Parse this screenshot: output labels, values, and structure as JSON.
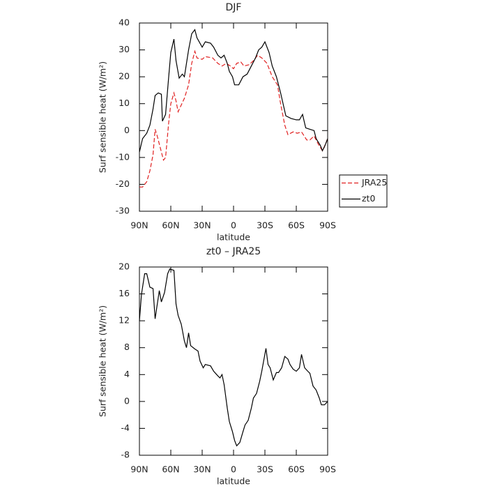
{
  "chart_data": [
    {
      "type": "line",
      "title": "DJF",
      "xlabel": "latitude",
      "ylabel": "Surf sensible heat (W/m²)",
      "xlim": [
        90,
        -90
      ],
      "ylim": [
        -30,
        40
      ],
      "xticks": [
        {
          "value": 90,
          "label": "90N"
        },
        {
          "value": 60,
          "label": "60N"
        },
        {
          "value": 30,
          "label": "30N"
        },
        0,
        {
          "value": -30,
          "label": "30S"
        },
        {
          "value": -60,
          "label": "60S"
        },
        {
          "value": -90,
          "label": "90S"
        }
      ],
      "yticks": [
        -30,
        -20,
        -10,
        0,
        10,
        20,
        30,
        40
      ],
      "legend": "right",
      "series": [
        {
          "name": "JRA25",
          "color": "#e02020",
          "linestyle": "dashed",
          "x": [
            90,
            87,
            83,
            80,
            77,
            75,
            73,
            69,
            67,
            65,
            62,
            60,
            57,
            55,
            53,
            50,
            47,
            43,
            40,
            37,
            35,
            30,
            27,
            20,
            15,
            11,
            7,
            3,
            0,
            -3,
            -7,
            -10,
            -15,
            -19,
            -23,
            -27,
            -32,
            -37,
            -42,
            -45,
            -49,
            -52,
            -57,
            -61,
            -65,
            -70,
            -73,
            -77,
            -81,
            -85,
            -88,
            -90
          ],
          "values": [
            -21,
            -21,
            -19,
            -15,
            -9,
            0.5,
            -2,
            -8,
            -11,
            -10,
            3,
            10,
            14,
            11,
            7,
            9.5,
            12,
            17,
            25,
            29.5,
            27,
            26.5,
            27.5,
            27,
            25,
            24,
            25,
            24,
            23,
            25,
            25.5,
            24,
            24.5,
            26,
            28,
            27,
            25,
            20,
            17,
            10,
            2,
            -1.5,
            -0.5,
            -1,
            -0.5,
            -3.5,
            -3.5,
            -2,
            -5,
            -7.5,
            -5,
            -3
          ]
        },
        {
          "name": "zt0",
          "color": "#000000",
          "linestyle": "solid",
          "x": [
            90,
            87,
            83,
            80,
            77,
            75,
            72,
            69,
            68,
            65,
            62,
            60,
            57,
            55,
            52,
            49,
            47,
            43,
            40,
            37,
            35,
            30,
            27,
            22,
            19,
            15,
            12,
            9,
            6,
            4,
            1,
            -1,
            -5,
            -9,
            -13,
            -17,
            -21,
            -24,
            -27,
            -30,
            -34,
            -37,
            -41,
            -45,
            -50,
            -55,
            -60,
            -63,
            -66,
            -69,
            -73,
            -77,
            -79,
            -83,
            -85,
            -87,
            -90
          ],
          "values": [
            -8,
            -3,
            -1,
            2,
            8,
            13,
            14,
            13.5,
            3.5,
            6,
            20,
            29,
            34,
            26,
            19.5,
            21,
            20,
            30,
            36,
            37.5,
            34.5,
            31,
            33,
            32.5,
            31,
            28,
            27,
            28,
            25,
            22,
            20,
            17,
            17,
            20,
            21,
            24,
            27,
            30,
            31,
            33,
            29,
            24,
            20,
            14,
            5.5,
            4.5,
            4,
            4,
            6,
            1,
            0.5,
            0,
            -3,
            -5.5,
            -7.5,
            -6,
            -3
          ]
        }
      ]
    },
    {
      "type": "line",
      "title": "zt0 – JRA25",
      "xlabel": "latitude",
      "ylabel": "Surf sensible heat (W/m²)",
      "xlim": [
        90,
        -90
      ],
      "ylim": [
        -8,
        20
      ],
      "xticks": [
        {
          "value": 90,
          "label": "90N"
        },
        {
          "value": 60,
          "label": "60N"
        },
        {
          "value": 30,
          "label": "30N"
        },
        0,
        {
          "value": -30,
          "label": "30S"
        },
        {
          "value": -60,
          "label": "60S"
        },
        {
          "value": -90,
          "label": "90S"
        }
      ],
      "yticks": [
        -8,
        -4,
        0,
        4,
        8,
        12,
        16,
        20
      ],
      "color": "#000000",
      "x": [
        90,
        88,
        85,
        83,
        80,
        77,
        75,
        71,
        69,
        66,
        63,
        61,
        57,
        55,
        53,
        50,
        47,
        45,
        43,
        41,
        37,
        34,
        32,
        29,
        27,
        22,
        19,
        15,
        13,
        11,
        9,
        6,
        4,
        1,
        -1,
        -3,
        -6,
        -9,
        -11,
        -14,
        -17,
        -19,
        -22,
        -25,
        -27,
        -31,
        -33,
        -35,
        -38,
        -41,
        -43,
        -46,
        -49,
        -52,
        -54,
        -57,
        -60,
        -63,
        -65,
        -68,
        -71,
        -73,
        -76,
        -79,
        -82,
        -84,
        -87,
        -90
      ],
      "values": [
        12,
        16,
        19,
        19,
        17,
        16.8,
        12.3,
        16.5,
        14.8,
        16.2,
        19,
        19.7,
        19.5,
        14.5,
        12.8,
        11.5,
        9,
        8,
        10.2,
        8.3,
        7.8,
        7.5,
        6,
        5,
        5.5,
        5.3,
        4.5,
        3.8,
        3.5,
        4,
        2.5,
        -1,
        -3,
        -4.5,
        -5.8,
        -6.6,
        -6.1,
        -4.5,
        -3.5,
        -2.8,
        -1,
        0.5,
        1.2,
        3,
        4.5,
        7.9,
        5.5,
        5,
        3.2,
        4.3,
        4.3,
        5,
        6.7,
        6.3,
        5.5,
        4.8,
        4.5,
        5,
        7,
        5,
        4.5,
        4.2,
        2.3,
        1.7,
        0.5,
        -0.5,
        -0.5,
        0
      ]
    }
  ]
}
